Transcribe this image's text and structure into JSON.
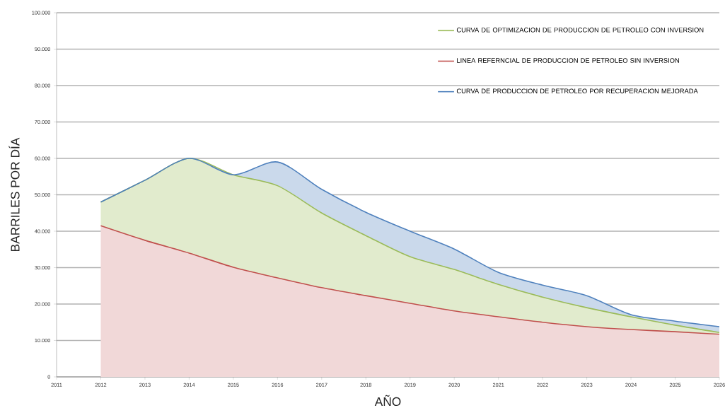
{
  "chart_data": {
    "type": "area",
    "xlabel": "AÑO",
    "ylabel": "BARRILES POR DÍA",
    "xlim": [
      2011,
      2026
    ],
    "ylim": [
      0,
      100000
    ],
    "xticks": [
      2011,
      2012,
      2013,
      2014,
      2015,
      2016,
      2017,
      2018,
      2019,
      2020,
      2021,
      2022,
      2023,
      2024,
      2025,
      2026
    ],
    "yticks": [
      0,
      {
        "value": 10000,
        "label": "10.000"
      },
      {
        "value": 20000,
        "label": "20.000"
      },
      {
        "value": 30000,
        "label": "30.000"
      },
      {
        "value": 40000,
        "label": "40.000"
      },
      {
        "value": 50000,
        "label": "50.000"
      },
      {
        "value": 60000,
        "label": "60.000"
      },
      {
        "value": 70000,
        "label": "70.000"
      },
      {
        "value": 80000,
        "label": "80.000"
      },
      {
        "value": 90000,
        "label": "90.000"
      },
      {
        "value": 100000,
        "label": "100.000"
      }
    ],
    "x": [
      2012,
      2013,
      2014,
      2015,
      2016,
      2017,
      2018,
      2019,
      2020,
      2021,
      2022,
      2023,
      2024,
      2025,
      2026
    ],
    "series": [
      {
        "name": "CURVA DE OPTIMIZACION DE PRODUCCION DE PETROLEO CON INVERSION",
        "color": "#9bbb59",
        "values": [
          48000,
          54000,
          60000,
          55500,
          52500,
          45000,
          38800,
          33000,
          29500,
          25400,
          21900,
          19000,
          16500,
          14200,
          12200
        ]
      },
      {
        "name": "LINEA REFERNCIAL DE PRODUCCION DE PETROLEO SIN INVERSION",
        "color": "#c0504d",
        "values": [
          41500,
          37500,
          34000,
          30100,
          27200,
          24500,
          22300,
          20200,
          18100,
          16500,
          15000,
          13800,
          13000,
          12400,
          11700
        ]
      },
      {
        "name": "CURVA DE PRODUCCION DE PETROLEO POR RECUPERACION MEJORADA",
        "color": "#4f81bd",
        "values": [
          48000,
          54000,
          60000,
          55500,
          59000,
          51500,
          45200,
          40000,
          35100,
          28700,
          25200,
          22300,
          17100,
          15300,
          13800
        ]
      }
    ],
    "grid": "y",
    "legend": "top right"
  }
}
